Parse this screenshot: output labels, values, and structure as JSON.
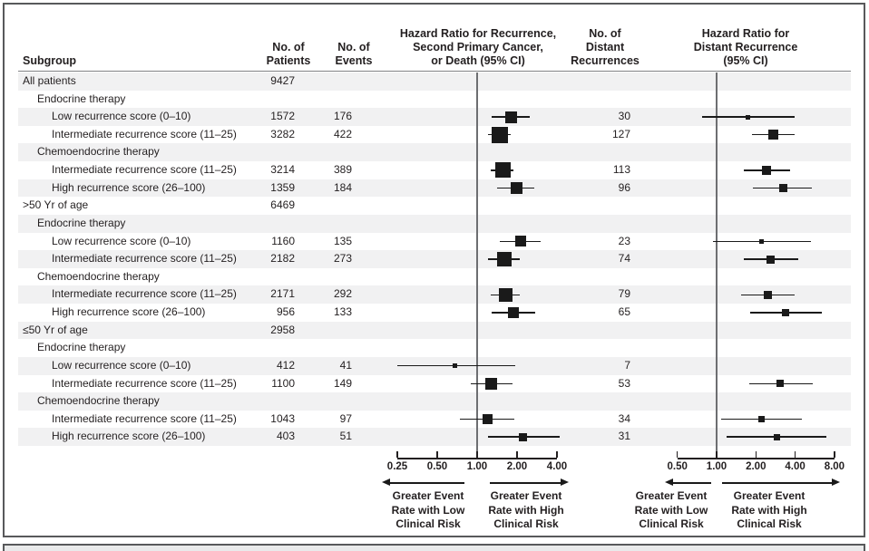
{
  "figure": {
    "columns": {
      "subgroup": "Subgroup",
      "patients": [
        "No. of",
        "Patients"
      ],
      "events": [
        "No. of",
        "Events"
      ],
      "hr_recurrence": [
        "Hazard Ratio for Recurrence,",
        "Second Primary Cancer,",
        "or Death (95% CI)"
      ],
      "distant": [
        "No. of",
        "Distant",
        "Recurrences"
      ],
      "hr_distant": [
        "Hazard Ratio for",
        "Distant Recurrence",
        "(95% CI)"
      ]
    }
  },
  "colors": {
    "row_shade": "#f1f1f2",
    "text": "#231f20",
    "marker": "#1a1a1a",
    "ref_line": "#6d6e71",
    "axis": "#231f20",
    "frame_border": "#58595b",
    "footer_fill": "#e9eaeb"
  },
  "chart_data": {
    "type": "forest",
    "scale": "log2",
    "axis1": {
      "ticks": [
        0.25,
        0.5,
        1.0,
        2.0,
        4.0
      ],
      "reference": 1.0
    },
    "axis2": {
      "ticks": [
        0.5,
        1.0,
        2.0,
        4.0,
        8.0
      ],
      "reference": 1.0
    },
    "arrow_labels": {
      "left": [
        "Greater Event",
        "Rate with Low",
        "Clinical Risk"
      ],
      "right": [
        "Greater Event",
        "Rate with High",
        "Clinical Risk"
      ]
    },
    "rows": [
      {
        "label": "All patients",
        "indent": 0,
        "patients": "9427",
        "events": "",
        "distant": "",
        "hr1": null,
        "hr2": null
      },
      {
        "label": "Endocrine therapy",
        "indent": 1,
        "patients": "",
        "events": "",
        "distant": "",
        "hr1": null,
        "hr2": null
      },
      {
        "label": "Low recurrence score (0–10)",
        "indent": 2,
        "patients": "1572",
        "events": "176",
        "distant": "30",
        "hr1": {
          "est": 1.81,
          "lo": 1.29,
          "hi": 2.49,
          "sq": 13
        },
        "hr2": {
          "est": 1.74,
          "lo": 0.78,
          "hi": 3.97,
          "sq": 5
        }
      },
      {
        "label": "Intermediate recurrence score (11–25)",
        "indent": 2,
        "patients": "3282",
        "events": "422",
        "distant": "127",
        "hr1": {
          "est": 1.49,
          "lo": 1.2,
          "hi": 1.78,
          "sq": 18
        },
        "hr2": {
          "est": 2.73,
          "lo": 1.88,
          "hi": 3.97,
          "sq": 11
        }
      },
      {
        "label": "Chemoendocrine therapy",
        "indent": 1,
        "patients": "",
        "events": "",
        "distant": "",
        "hr1": null,
        "hr2": null
      },
      {
        "label": "Intermediate recurrence score (11–25)",
        "indent": 2,
        "patients": "3214",
        "events": "389",
        "distant": "113",
        "hr1": {
          "est": 1.56,
          "lo": 1.27,
          "hi": 1.88,
          "sq": 17
        },
        "hr2": {
          "est": 2.43,
          "lo": 1.62,
          "hi": 3.63,
          "sq": 10
        }
      },
      {
        "label": "High recurrence score (26–100)",
        "indent": 2,
        "patients": "1359",
        "events": "184",
        "distant": "96",
        "hr1": {
          "est": 1.98,
          "lo": 1.41,
          "hi": 2.71,
          "sq": 13
        },
        "hr2": {
          "est": 3.23,
          "lo": 1.9,
          "hi": 5.37,
          "sq": 9
        }
      },
      {
        "label": ">50 Yr of age",
        "indent": 0,
        "patients": "6469",
        "events": "",
        "distant": "",
        "hr1": null,
        "hr2": null
      },
      {
        "label": "Endocrine therapy",
        "indent": 1,
        "patients": "",
        "events": "",
        "distant": "",
        "hr1": null,
        "hr2": null
      },
      {
        "label": "Low recurrence score (0–10)",
        "indent": 2,
        "patients": "1160",
        "events": "135",
        "distant": "23",
        "hr1": {
          "est": 2.12,
          "lo": 1.48,
          "hi": 3.01,
          "sq": 12
        },
        "hr2": {
          "est": 2.21,
          "lo": 0.94,
          "hi": 5.28,
          "sq": 5
        }
      },
      {
        "label": "Intermediate recurrence score (11–25)",
        "indent": 2,
        "patients": "2182",
        "events": "273",
        "distant": "74",
        "hr1": {
          "est": 1.6,
          "lo": 1.2,
          "hi": 2.09,
          "sq": 16
        },
        "hr2": {
          "est": 2.6,
          "lo": 1.62,
          "hi": 4.2,
          "sq": 9
        }
      },
      {
        "label": "Chemoendocrine therapy",
        "indent": 1,
        "patients": "",
        "events": "",
        "distant": "",
        "hr1": null,
        "hr2": null
      },
      {
        "label": "Intermediate recurrence score (11–25)",
        "indent": 2,
        "patients": "2171",
        "events": "292",
        "distant": "79",
        "hr1": {
          "est": 1.65,
          "lo": 1.27,
          "hi": 2.09,
          "sq": 15
        },
        "hr2": {
          "est": 2.49,
          "lo": 1.55,
          "hi": 3.97,
          "sq": 9
        }
      },
      {
        "label": "High recurrence score (26–100)",
        "indent": 2,
        "patients": "956",
        "events": "133",
        "distant": "65",
        "hr1": {
          "est": 1.88,
          "lo": 1.29,
          "hi": 2.74,
          "sq": 12
        },
        "hr2": {
          "est": 3.39,
          "lo": 1.81,
          "hi": 6.39,
          "sq": 8
        }
      },
      {
        "label": "≤50 Yr of age",
        "indent": 0,
        "patients": "2958",
        "events": "",
        "distant": "",
        "hr1": null,
        "hr2": null
      },
      {
        "label": "Endocrine therapy",
        "indent": 1,
        "patients": "",
        "events": "",
        "distant": "",
        "hr1": null,
        "hr2": null
      },
      {
        "label": "Low recurrence score (0–10)",
        "indent": 2,
        "patients": "412",
        "events": "41",
        "distant": "7",
        "hr1": {
          "est": 0.68,
          "lo": 0.25,
          "hi": 1.93,
          "sq": 5
        },
        "hr2": null
      },
      {
        "label": "Intermediate recurrence score (11–25)",
        "indent": 2,
        "patients": "1100",
        "events": "149",
        "distant": "53",
        "hr1": {
          "est": 1.27,
          "lo": 0.89,
          "hi": 1.85,
          "sq": 13
        },
        "hr2": {
          "est": 3.05,
          "lo": 1.78,
          "hi": 5.43,
          "sq": 8
        }
      },
      {
        "label": "Chemoendocrine therapy",
        "indent": 1,
        "patients": "",
        "events": "",
        "distant": "",
        "hr1": null,
        "hr2": null
      },
      {
        "label": "Intermediate recurrence score (11–25)",
        "indent": 2,
        "patients": "1043",
        "events": "97",
        "distant": "34",
        "hr1": {
          "est": 1.19,
          "lo": 0.74,
          "hi": 1.9,
          "sq": 11
        },
        "hr2": {
          "est": 2.21,
          "lo": 1.09,
          "hi": 4.5,
          "sq": 7
        }
      },
      {
        "label": "High recurrence score (26–100)",
        "indent": 2,
        "patients": "403",
        "events": "51",
        "distant": "31",
        "hr1": {
          "est": 2.22,
          "lo": 1.21,
          "hi": 4.17,
          "sq": 9
        },
        "hr2": {
          "est": 2.88,
          "lo": 1.19,
          "hi": 6.9,
          "sq": 7
        }
      }
    ]
  }
}
